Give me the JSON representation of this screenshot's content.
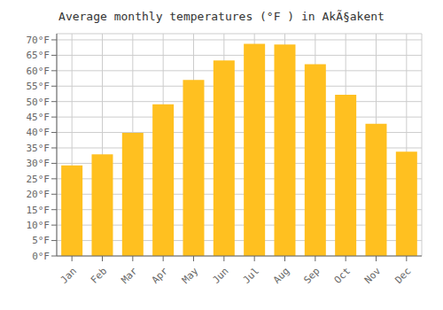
{
  "chart_data": {
    "type": "bar",
    "title": "Average monthly temperatures (°F ) in AkÃ§akent",
    "categories": [
      "Jan",
      "Feb",
      "Mar",
      "Apr",
      "May",
      "Jun",
      "Jul",
      "Aug",
      "Sep",
      "Oct",
      "Nov",
      "Dec"
    ],
    "values": [
      29.3,
      32.9,
      39.9,
      49.1,
      57.0,
      63.3,
      68.7,
      68.5,
      62.1,
      52.2,
      42.8,
      33.8
    ],
    "color": "#FFC020",
    "ylim": [
      0,
      72
    ],
    "yticks": [
      {
        "value": 0,
        "label": "0°F"
      },
      {
        "value": 5,
        "label": "5°F"
      },
      {
        "value": 10,
        "label": "10°F"
      },
      {
        "value": 15,
        "label": "15°F"
      },
      {
        "value": 20,
        "label": "20°F"
      },
      {
        "value": 25,
        "label": "25°F"
      },
      {
        "value": 30,
        "label": "30°F"
      },
      {
        "value": 35,
        "label": "35°F"
      },
      {
        "value": 40,
        "label": "40°F"
      },
      {
        "value": 45,
        "label": "45°F"
      },
      {
        "value": 50,
        "label": "50°F"
      },
      {
        "value": 55,
        "label": "55°F"
      },
      {
        "value": 60,
        "label": "60°F"
      },
      {
        "value": 65,
        "label": "65°F"
      },
      {
        "value": 70,
        "label": "70°F"
      }
    ],
    "grid": true
  }
}
